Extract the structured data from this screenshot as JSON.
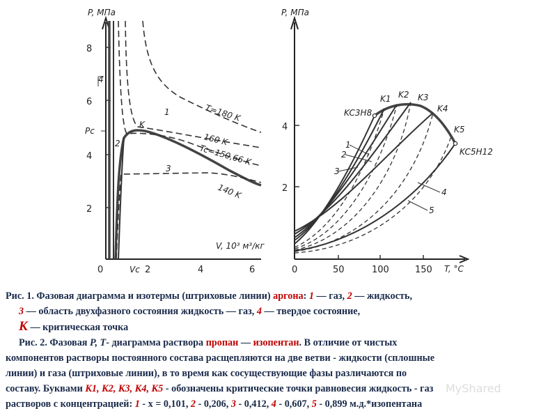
{
  "fig1": {
    "y_axis_label": "P, МПа",
    "x_axis_label": "V, 10³ м³/кг",
    "y_ticks": [
      "8",
      "6",
      "4",
      "2"
    ],
    "x_ticks": [
      "0",
      "2",
      "4",
      "6"
    ],
    "pc_label": "Pc",
    "vc_label": "Vc",
    "curve_labels": {
      "c1": "1",
      "c2": "2",
      "c3": "3",
      "c4": "4",
      "T180": "T=180 K",
      "T160": "160 K",
      "Tc": "Tc=150,66 K",
      "T140": "140 K",
      "K": "K"
    }
  },
  "fig2": {
    "y_axis_label": "P, МПа",
    "x_axis_label": "T, °C",
    "y_ticks": [
      "4",
      "2"
    ],
    "x_ticks": [
      "0",
      "50",
      "100",
      "150"
    ],
    "curve_labels": {
      "K1": "K1",
      "K2": "K2",
      "K3": "K3",
      "K4": "K4",
      "K5": "K5",
      "KC3H8": "KC3H8",
      "KC5H12": "KC5H12",
      "n1": "1",
      "n2": "2",
      "n3": "3",
      "n4": "4",
      "n5": "5"
    }
  },
  "caption": {
    "l1a": "Рис. 1. Фазовая диаграмма и изотермы (штриховые линии) ",
    "l1b": "аргона",
    "l1c": ": ",
    "l1d": "1",
    "l1e": " — газ, ",
    "l1f": "2",
    "l1g": " — жидкость,",
    "l2a": "3",
    "l2b": " — область двухфазного состояния жидкость — газ, ",
    "l2c": "4",
    "l2d": " — твердое состояние,",
    "l3a": "К",
    "l3b": " — критическая точка",
    "l4a": "Рис. 2. Фазовая ",
    "l4b": "Р, Т",
    "l4c": "- диаграмма раствора ",
    "l4d": "пропан",
    "l4e": " — ",
    "l4f": "изопентан",
    "l4g": ". В отличие от чистых",
    "l5": "компонентов растворы постоянного состава расщепляются на две ветви - жидкости (сплошные",
    "l6": "линии) и газа (штриховые линии), в то время как сосуществующие фазы различаются по",
    "l7a": "составу. Буквами ",
    "l7b": "К1, К2, К3, К4, К5",
    "l7c": " - обозначены критические точки равновесия жидкость - газ",
    "l8a": "растворов с концентрацией: ",
    "l8b": "1",
    "l8c": " - x = 0,101, ",
    "l8d": "2",
    "l8e": " - 0,206, ",
    "l8f": "3",
    "l8g": " - 0,412, ",
    "l8h": "4",
    "l8i": " - 0,607, ",
    "l8j": "5",
    "l8k": " - 0,899 м.д.*изопентана"
  },
  "watermark": "MyShared"
}
